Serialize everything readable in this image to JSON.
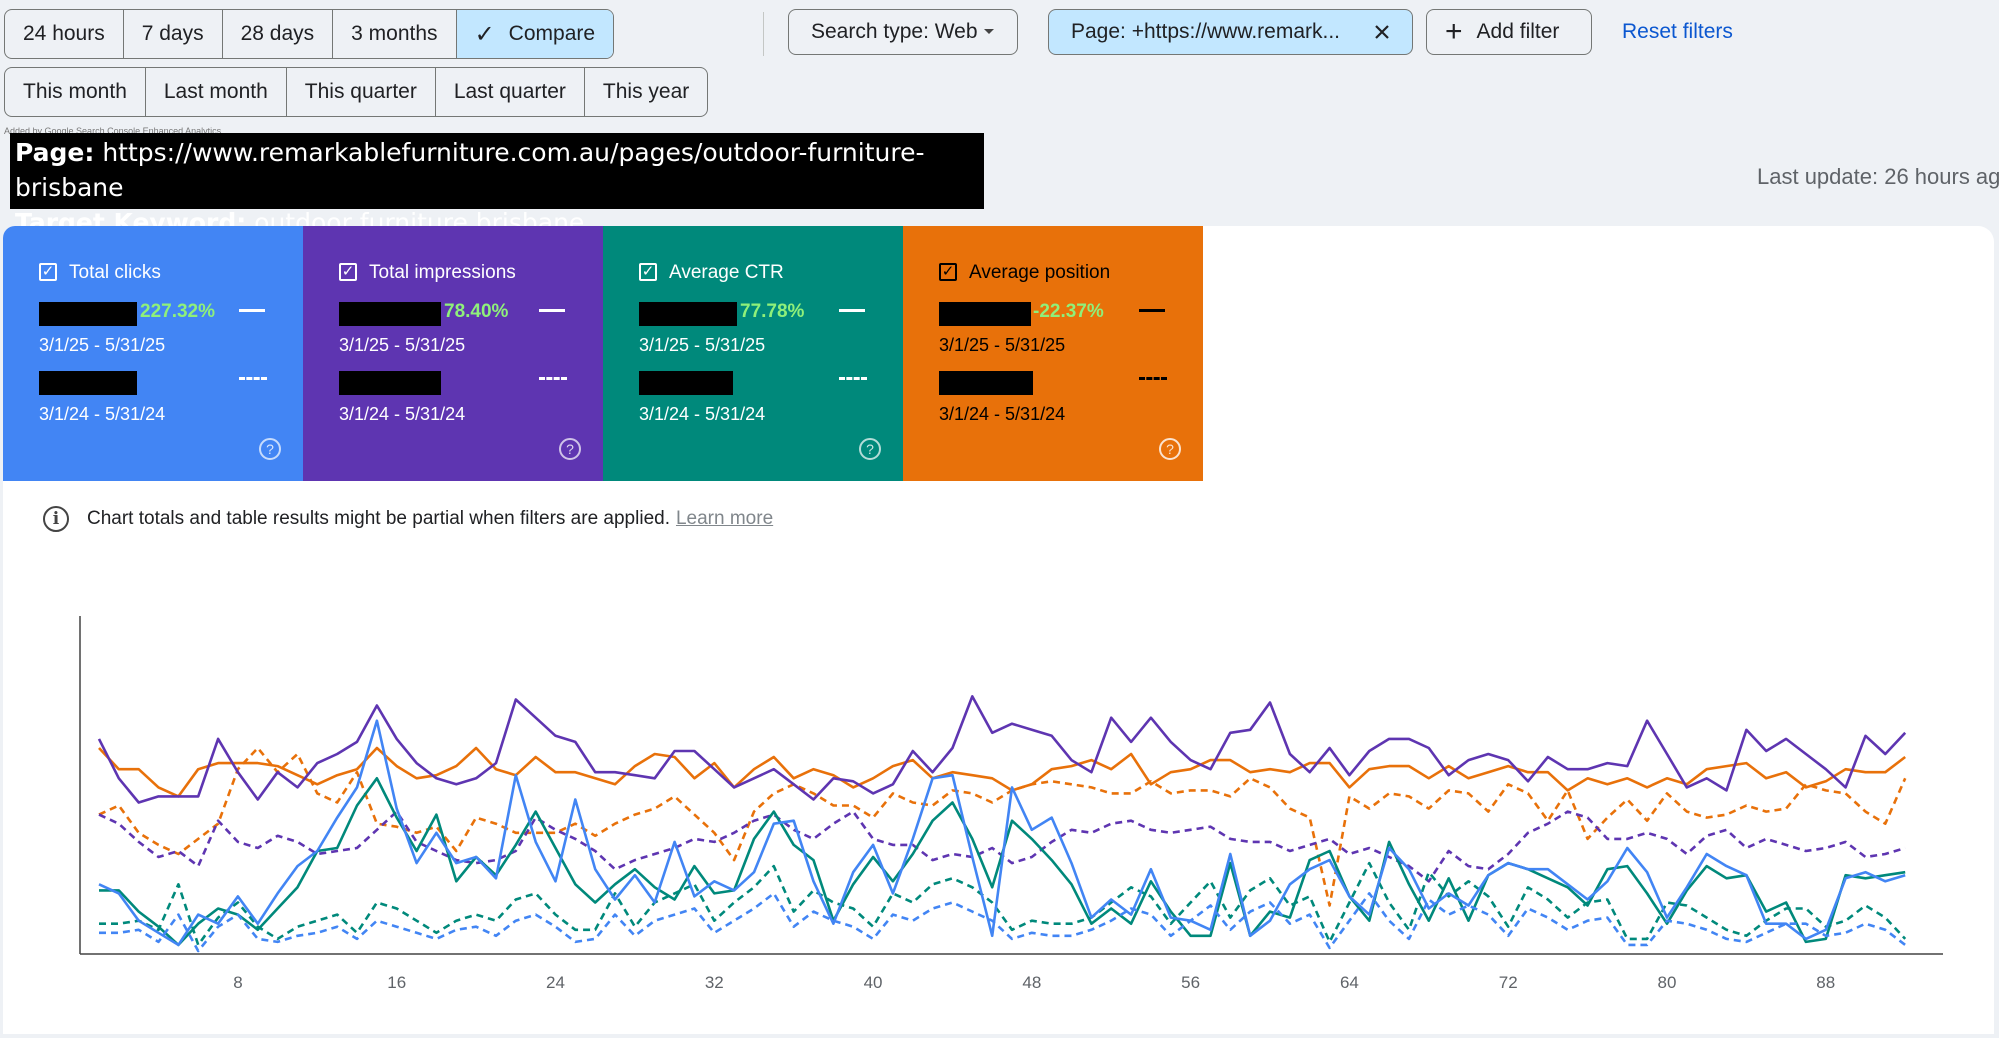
{
  "toolbar": {
    "ranges": [
      "24 hours",
      "7 days",
      "28 days",
      "3 months"
    ],
    "compare_label": "Compare",
    "periods": [
      "This month",
      "Last month",
      "This quarter",
      "Last quarter",
      "This year"
    ],
    "search_type": "Search type: Web",
    "page_filter": "Page: +https://www.remark...",
    "add_filter": "Add filter",
    "reset": "Reset filters"
  },
  "extension_note": "Added by Google Search Console Enhanced Analytics",
  "banner": {
    "page_label": "Page:",
    "page_value": "https://www.remarkablefurniture.com.au/pages/outdoor-furniture-brisbane",
    "keyword_label": "Target Keyword:",
    "keyword_value": "outdoor furniture brisbane"
  },
  "last_update": "Last update: 26 hours ag",
  "metrics": [
    {
      "title": "Total clicks",
      "change": "227.32%",
      "range_current": "3/1/25 - 5/31/25",
      "range_previous": "3/1/24 - 5/31/24",
      "color": "#4285f4"
    },
    {
      "title": "Total impressions",
      "change": "78.40%",
      "range_current": "3/1/25 - 5/31/25",
      "range_previous": "3/1/24 - 5/31/24",
      "color": "#5e35b1"
    },
    {
      "title": "Average CTR",
      "change": "77.78%",
      "range_current": "3/1/25 - 5/31/25",
      "range_previous": "3/1/24 - 5/31/24",
      "color": "#00897b"
    },
    {
      "title": "Average position",
      "change": "-22.37%",
      "range_current": "3/1/25 - 5/31/25",
      "range_previous": "3/1/24 - 5/31/24",
      "color": "#e8710a"
    }
  ],
  "notice": {
    "text": "Chart totals and table results might be partial when filters are applied.",
    "link": "Learn more"
  },
  "chart_data": {
    "type": "line",
    "x_ticks": [
      8,
      16,
      24,
      32,
      40,
      48,
      56,
      64,
      72,
      80,
      88
    ],
    "xlim": [
      1,
      93
    ],
    "ylim": [
      0,
      1
    ],
    "grid": false,
    "series": [
      {
        "color": "#e8710a",
        "dash": false,
        "values": [
          0.68,
          0.61,
          0.61,
          0.55,
          0.52,
          0.61,
          0.63,
          0.63,
          0.63,
          0.62,
          0.59,
          0.56,
          0.59,
          0.61,
          0.68,
          0.62,
          0.58,
          0.59,
          0.62,
          0.68,
          0.61,
          0.59,
          0.65,
          0.6,
          0.6,
          0.58,
          0.56,
          0.62,
          0.66,
          0.65,
          0.58,
          0.63,
          0.55,
          0.61,
          0.65,
          0.58,
          0.61,
          0.59,
          0.55,
          0.58,
          0.62,
          0.64,
          0.58,
          0.6,
          0.59,
          0.58,
          0.54,
          0.56,
          0.61,
          0.62,
          0.64,
          0.61,
          0.66,
          0.56,
          0.6,
          0.61,
          0.64,
          0.64,
          0.6,
          0.61,
          0.6,
          0.63,
          0.63,
          0.55,
          0.61,
          0.62,
          0.62,
          0.58,
          0.62,
          0.58,
          0.6,
          0.62,
          0.6,
          0.6,
          0.54,
          0.58,
          0.56,
          0.58,
          0.55,
          0.58,
          0.56,
          0.61,
          0.62,
          0.63,
          0.58,
          0.6,
          0.55,
          0.57,
          0.61,
          0.6,
          0.6,
          0.65
        ]
      },
      {
        "color": "#e8710a",
        "dash": true,
        "values": [
          0.46,
          0.49,
          0.4,
          0.36,
          0.33,
          0.38,
          0.43,
          0.61,
          0.68,
          0.6,
          0.66,
          0.53,
          0.5,
          0.6,
          0.43,
          0.42,
          0.4,
          0.42,
          0.34,
          0.45,
          0.43,
          0.4,
          0.4,
          0.4,
          0.43,
          0.39,
          0.43,
          0.46,
          0.48,
          0.52,
          0.46,
          0.4,
          0.31,
          0.47,
          0.53,
          0.56,
          0.53,
          0.49,
          0.49,
          0.45,
          0.53,
          0.5,
          0.49,
          0.54,
          0.53,
          0.5,
          0.54,
          0.56,
          0.57,
          0.56,
          0.55,
          0.53,
          0.53,
          0.57,
          0.53,
          0.54,
          0.54,
          0.52,
          0.58,
          0.55,
          0.48,
          0.45,
          0.16,
          0.52,
          0.48,
          0.53,
          0.52,
          0.48,
          0.54,
          0.53,
          0.47,
          0.56,
          0.53,
          0.44,
          0.54,
          0.38,
          0.45,
          0.51,
          0.44,
          0.53,
          0.47,
          0.45,
          0.46,
          0.49,
          0.47,
          0.48,
          0.56,
          0.54,
          0.53,
          0.47,
          0.43,
          0.58
        ]
      },
      {
        "color": "#5e35b1",
        "dash": false,
        "values": [
          0.71,
          0.58,
          0.5,
          0.52,
          0.52,
          0.52,
          0.71,
          0.6,
          0.51,
          0.6,
          0.55,
          0.63,
          0.66,
          0.7,
          0.82,
          0.71,
          0.63,
          0.58,
          0.56,
          0.58,
          0.63,
          0.84,
          0.78,
          0.72,
          0.7,
          0.6,
          0.6,
          0.59,
          0.58,
          0.67,
          0.67,
          0.61,
          0.55,
          0.58,
          0.61,
          0.56,
          0.51,
          0.58,
          0.57,
          0.53,
          0.56,
          0.67,
          0.6,
          0.68,
          0.85,
          0.73,
          0.76,
          0.74,
          0.72,
          0.64,
          0.6,
          0.78,
          0.7,
          0.78,
          0.7,
          0.64,
          0.61,
          0.73,
          0.74,
          0.83,
          0.66,
          0.6,
          0.68,
          0.59,
          0.67,
          0.71,
          0.71,
          0.68,
          0.59,
          0.64,
          0.66,
          0.64,
          0.57,
          0.65,
          0.61,
          0.61,
          0.63,
          0.62,
          0.77,
          0.66,
          0.55,
          0.58,
          0.54,
          0.74,
          0.67,
          0.71,
          0.66,
          0.61,
          0.55,
          0.72,
          0.66,
          0.73
        ]
      },
      {
        "color": "#5e35b1",
        "dash": true,
        "values": [
          0.46,
          0.43,
          0.37,
          0.32,
          0.34,
          0.29,
          0.44,
          0.37,
          0.35,
          0.39,
          0.37,
          0.33,
          0.34,
          0.35,
          0.41,
          0.47,
          0.37,
          0.34,
          0.31,
          0.3,
          0.31,
          0.34,
          0.45,
          0.41,
          0.38,
          0.34,
          0.28,
          0.31,
          0.33,
          0.35,
          0.38,
          0.37,
          0.4,
          0.44,
          0.46,
          0.41,
          0.38,
          0.43,
          0.47,
          0.38,
          0.36,
          0.36,
          0.31,
          0.33,
          0.32,
          0.35,
          0.3,
          0.32,
          0.37,
          0.41,
          0.4,
          0.43,
          0.44,
          0.41,
          0.4,
          0.41,
          0.42,
          0.38,
          0.37,
          0.37,
          0.34,
          0.36,
          0.38,
          0.33,
          0.35,
          0.32,
          0.29,
          0.24,
          0.34,
          0.29,
          0.28,
          0.33,
          0.4,
          0.43,
          0.47,
          0.45,
          0.38,
          0.38,
          0.4,
          0.38,
          0.33,
          0.39,
          0.41,
          0.35,
          0.38,
          0.36,
          0.34,
          0.35,
          0.37,
          0.32,
          0.33,
          0.35
        ]
      },
      {
        "color": "#00897b",
        "dash": false,
        "values": [
          0.21,
          0.21,
          0.14,
          0.09,
          0.03,
          0.1,
          0.15,
          0.13,
          0.08,
          0.15,
          0.22,
          0.34,
          0.35,
          0.49,
          0.58,
          0.45,
          0.34,
          0.46,
          0.24,
          0.32,
          0.26,
          0.36,
          0.47,
          0.35,
          0.23,
          0.17,
          0.23,
          0.28,
          0.22,
          0.18,
          0.29,
          0.2,
          0.21,
          0.38,
          0.47,
          0.36,
          0.31,
          0.11,
          0.23,
          0.32,
          0.24,
          0.33,
          0.44,
          0.5,
          0.38,
          0.22,
          0.44,
          0.38,
          0.31,
          0.23,
          0.1,
          0.15,
          0.1,
          0.24,
          0.14,
          0.06,
          0.06,
          0.3,
          0.06,
          0.14,
          0.12,
          0.31,
          0.34,
          0.19,
          0.11,
          0.37,
          0.23,
          0.11,
          0.25,
          0.11,
          0.26,
          0.3,
          0.28,
          0.25,
          0.22,
          0.16,
          0.28,
          0.29,
          0.2,
          0.1,
          0.21,
          0.29,
          0.25,
          0.26,
          0.14,
          0.17,
          0.04,
          0.05,
          0.26,
          0.25,
          0.26,
          0.27
        ]
      },
      {
        "color": "#00897b",
        "dash": true,
        "values": [
          0.1,
          0.1,
          0.11,
          0.08,
          0.23,
          0.03,
          0.12,
          0.17,
          0.09,
          0.05,
          0.09,
          0.11,
          0.13,
          0.07,
          0.17,
          0.15,
          0.11,
          0.07,
          0.11,
          0.13,
          0.11,
          0.18,
          0.2,
          0.13,
          0.08,
          0.08,
          0.2,
          0.09,
          0.17,
          0.2,
          0.23,
          0.11,
          0.17,
          0.22,
          0.29,
          0.14,
          0.21,
          0.17,
          0.15,
          0.09,
          0.2,
          0.17,
          0.23,
          0.25,
          0.22,
          0.17,
          0.08,
          0.11,
          0.1,
          0.1,
          0.12,
          0.17,
          0.22,
          0.19,
          0.1,
          0.17,
          0.24,
          0.12,
          0.21,
          0.25,
          0.16,
          0.19,
          0.04,
          0.17,
          0.3,
          0.17,
          0.08,
          0.27,
          0.19,
          0.24,
          0.19,
          0.09,
          0.22,
          0.18,
          0.12,
          0.17,
          0.18,
          0.05,
          0.05,
          0.17,
          0.16,
          0.12,
          0.08,
          0.06,
          0.11,
          0.15,
          0.15,
          0.09,
          0.11,
          0.16,
          0.12,
          0.05
        ]
      },
      {
        "color": "#4285f4",
        "dash": false,
        "values": [
          0.23,
          0.2,
          0.11,
          0.07,
          0.03,
          0.13,
          0.1,
          0.19,
          0.1,
          0.2,
          0.29,
          0.34,
          0.45,
          0.55,
          0.77,
          0.48,
          0.3,
          0.4,
          0.3,
          0.32,
          0.25,
          0.59,
          0.37,
          0.24,
          0.51,
          0.28,
          0.18,
          0.26,
          0.17,
          0.37,
          0.19,
          0.24,
          0.21,
          0.27,
          0.43,
          0.44,
          0.24,
          0.1,
          0.27,
          0.36,
          0.2,
          0.38,
          0.58,
          0.59,
          0.32,
          0.06,
          0.55,
          0.41,
          0.45,
          0.3,
          0.12,
          0.18,
          0.13,
          0.28,
          0.12,
          0.11,
          0.08,
          0.33,
          0.06,
          0.11,
          0.23,
          0.28,
          0.31,
          0.19,
          0.13,
          0.35,
          0.28,
          0.15,
          0.2,
          0.16,
          0.26,
          0.3,
          0.28,
          0.28,
          0.23,
          0.18,
          0.24,
          0.35,
          0.27,
          0.12,
          0.22,
          0.33,
          0.29,
          0.26,
          0.1,
          0.1,
          0.05,
          0.08,
          0.25,
          0.27,
          0.24,
          0.26
        ]
      },
      {
        "color": "#4285f4",
        "dash": true,
        "values": [
          0.07,
          0.07,
          0.08,
          0.04,
          0.13,
          0.01,
          0.09,
          0.13,
          0.05,
          0.04,
          0.06,
          0.07,
          0.09,
          0.05,
          0.11,
          0.09,
          0.07,
          0.05,
          0.08,
          0.09,
          0.06,
          0.11,
          0.13,
          0.09,
          0.04,
          0.05,
          0.13,
          0.06,
          0.11,
          0.13,
          0.15,
          0.07,
          0.11,
          0.15,
          0.2,
          0.09,
          0.14,
          0.11,
          0.09,
          0.05,
          0.13,
          0.11,
          0.15,
          0.17,
          0.14,
          0.11,
          0.05,
          0.07,
          0.06,
          0.06,
          0.08,
          0.11,
          0.15,
          0.13,
          0.06,
          0.11,
          0.16,
          0.08,
          0.14,
          0.17,
          0.1,
          0.13,
          0.02,
          0.11,
          0.2,
          0.11,
          0.05,
          0.18,
          0.13,
          0.16,
          0.13,
          0.06,
          0.15,
          0.12,
          0.08,
          0.11,
          0.12,
          0.03,
          0.03,
          0.11,
          0.1,
          0.08,
          0.05,
          0.04,
          0.07,
          0.1,
          0.1,
          0.06,
          0.07,
          0.1,
          0.08,
          0.03
        ]
      }
    ]
  }
}
